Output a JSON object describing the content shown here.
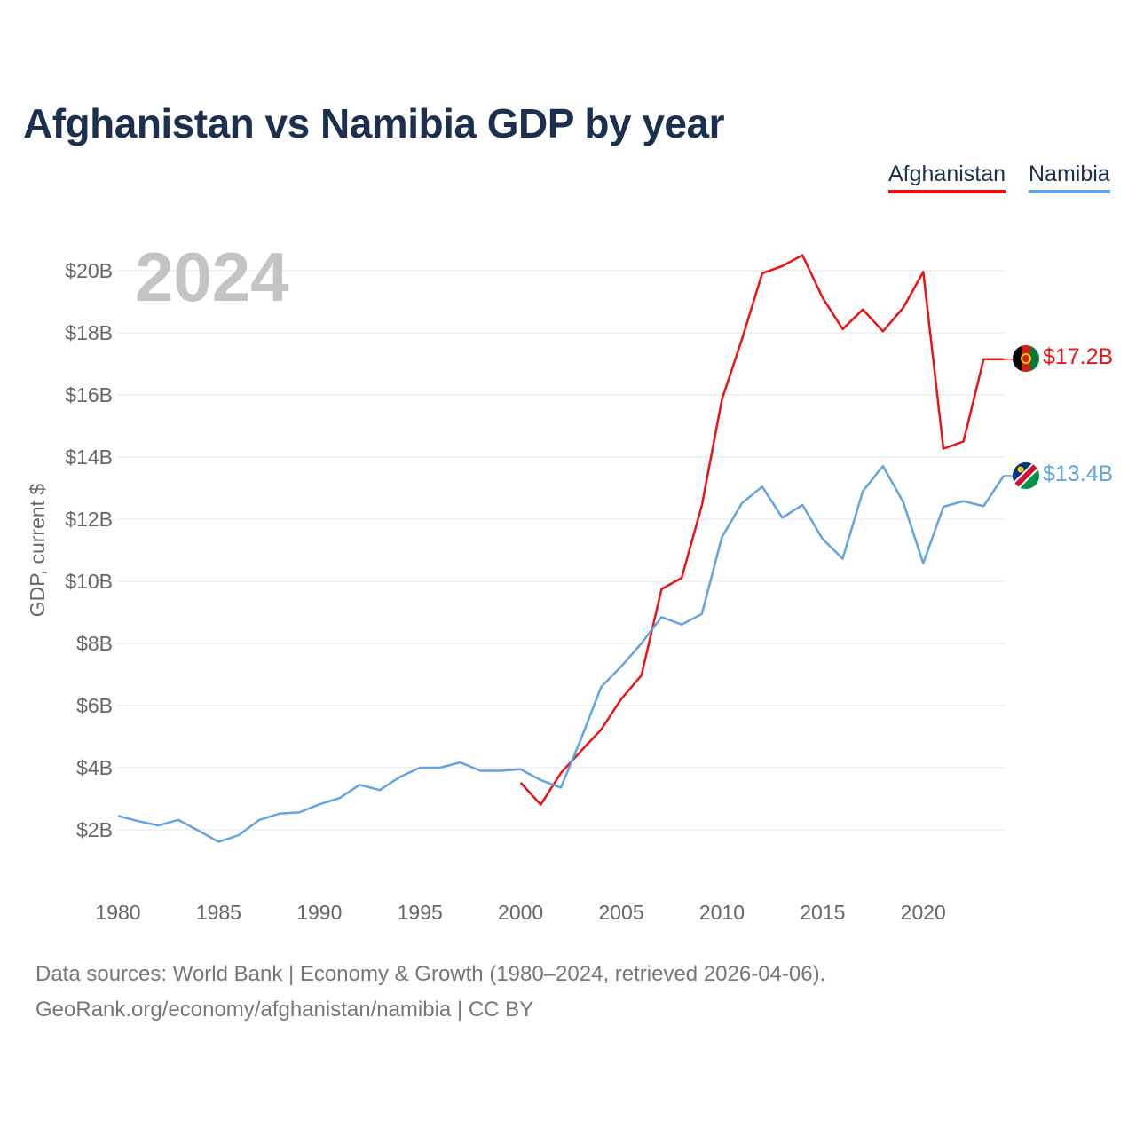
{
  "title": "Afghanistan vs Namibia GDP by year",
  "year_label": "2024",
  "legend": [
    {
      "name": "Afghanistan",
      "color": "#ee1111"
    },
    {
      "name": "Namibia",
      "color": "#62a3e3"
    }
  ],
  "footer": {
    "source": "Data sources: World Bank | Economy & Growth (1980–2024, retrieved 2026-04-06).",
    "link": "GeoRank.org/economy/afghanistan/namibia | CC BY"
  },
  "chart_data": {
    "type": "line",
    "title": "Afghanistan vs Namibia GDP by year",
    "xlabel": "",
    "ylabel": "GDP, current $",
    "xlim": [
      1980,
      2024
    ],
    "ylim": [
      0,
      21
    ],
    "x_ticks": [
      1980,
      1985,
      1990,
      1995,
      2000,
      2005,
      2010,
      2015,
      2020
    ],
    "x_tick_labels": [
      "1980",
      "1985",
      "1990",
      "1995",
      "2000",
      "2005",
      "2010",
      "2015",
      "2020"
    ],
    "y_ticks": [
      2,
      4,
      6,
      8,
      10,
      12,
      14,
      16,
      18,
      20
    ],
    "y_tick_labels": [
      "$2B",
      "$4B",
      "$6B",
      "$8B",
      "$10B",
      "$12B",
      "$14B",
      "$16B",
      "$18B",
      "$20B"
    ],
    "grid": true,
    "series": [
      {
        "name": "Afghanistan",
        "color": "#ee1111",
        "end_label": "$17.2B",
        "x": [
          2000,
          2001,
          2002,
          2003,
          2004,
          2005,
          2006,
          2007,
          2008,
          2009,
          2010,
          2011,
          2012,
          2013,
          2014,
          2015,
          2016,
          2017,
          2018,
          2019,
          2020,
          2021,
          2022,
          2023,
          2024
        ],
        "values": [
          3.52,
          2.81,
          3.83,
          4.54,
          5.23,
          6.21,
          6.97,
          9.75,
          10.11,
          12.44,
          15.86,
          17.8,
          19.91,
          20.15,
          20.5,
          19.13,
          18.12,
          18.75,
          18.05,
          18.8,
          19.96,
          14.27,
          14.5,
          17.15,
          17.15
        ]
      },
      {
        "name": "Namibia",
        "color": "#62a3e3",
        "end_label": "$13.4B",
        "x": [
          1980,
          1981,
          1982,
          1983,
          1984,
          1985,
          1986,
          1987,
          1988,
          1989,
          1990,
          1991,
          1992,
          1993,
          1994,
          1995,
          1996,
          1997,
          1998,
          1999,
          2000,
          2001,
          2002,
          2003,
          2004,
          2005,
          2006,
          2007,
          2008,
          2009,
          2010,
          2011,
          2012,
          2013,
          2014,
          2015,
          2016,
          2017,
          2018,
          2019,
          2020,
          2021,
          2022,
          2023,
          2024
        ],
        "values": [
          2.45,
          2.28,
          2.14,
          2.32,
          1.97,
          1.61,
          1.83,
          2.31,
          2.52,
          2.56,
          2.82,
          3.02,
          3.45,
          3.28,
          3.7,
          4.0,
          4.0,
          4.17,
          3.9,
          3.9,
          3.95,
          3.6,
          3.36,
          4.93,
          6.6,
          7.26,
          8.0,
          8.85,
          8.61,
          8.95,
          11.43,
          12.52,
          13.05,
          12.05,
          12.46,
          11.36,
          10.73,
          12.9,
          13.71,
          12.56,
          10.58,
          12.4,
          12.58,
          12.42,
          13.4
        ]
      }
    ]
  }
}
